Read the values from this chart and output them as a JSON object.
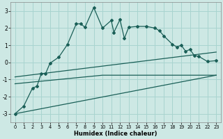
{
  "xlabel": "Humidex (Indice chaleur)",
  "bg_color": "#cde8e4",
  "grid_color": "#a8d4cf",
  "line_color": "#1a5f57",
  "xlim": [
    -0.5,
    23.5
  ],
  "ylim": [
    -3.5,
    3.5
  ],
  "yticks": [
    -3,
    -2,
    -1,
    0,
    1,
    2,
    3
  ],
  "xticks": [
    0,
    1,
    2,
    3,
    4,
    5,
    6,
    7,
    8,
    9,
    10,
    11,
    12,
    13,
    14,
    15,
    16,
    17,
    18,
    19,
    20,
    21,
    22,
    23
  ],
  "curve1_x": [
    0,
    1,
    2,
    2.5,
    3,
    3.5,
    4,
    5,
    6,
    7,
    7.5,
    8,
    9,
    10,
    11,
    11.3,
    12,
    12.5,
    13,
    14,
    15,
    16,
    16.5,
    17,
    18,
    18.5,
    19,
    19.5,
    20,
    20.5,
    21,
    22,
    23
  ],
  "curve1_y": [
    -3.0,
    -2.55,
    -1.5,
    -1.4,
    -0.65,
    -0.65,
    -0.05,
    0.3,
    1.05,
    2.25,
    2.25,
    2.05,
    3.2,
    2.0,
    2.45,
    1.75,
    2.5,
    1.4,
    2.05,
    2.1,
    2.1,
    2.0,
    1.85,
    1.55,
    1.05,
    0.9,
    1.0,
    0.65,
    0.75,
    0.4,
    0.35,
    0.05,
    0.1
  ],
  "ref_line1_x": [
    0,
    23
  ],
  "ref_line1_y": [
    -3.0,
    -0.75
  ],
  "ref_line2_x": [
    0,
    10,
    23
  ],
  "ref_line2_y": [
    -1.25,
    -0.75,
    -0.75
  ],
  "ref_line3_x": [
    0,
    23
  ],
  "ref_line3_y": [
    -0.85,
    0.6
  ]
}
